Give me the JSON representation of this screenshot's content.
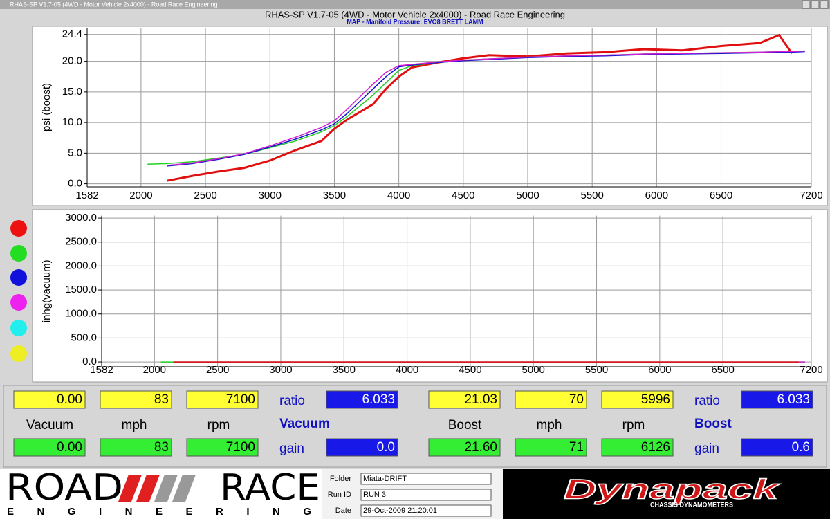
{
  "window": {
    "title": "RHAS-SP V1.7-05  (4WD - Motor Vehicle 2x4000) - Road Race Engineering",
    "heading": "RHAS-SP V1.7-05  (4WD - Motor Vehicle 2x4000) - Road Race Engineering"
  },
  "chart_data": [
    {
      "type": "line",
      "title": "MAP - Manifold Pressure: EVO8 BRETT LAMM",
      "ylabel": "psi (boost)",
      "x": [
        2050,
        2200,
        2400,
        2600,
        2800,
        3000,
        3200,
        3400,
        3500,
        3600,
        3800,
        3900,
        4000,
        4100,
        4300,
        4500,
        4700,
        5000,
        5300,
        5600,
        5900,
        6200,
        6500,
        6800,
        6950,
        7050,
        7150
      ],
      "series": [
        {
          "name": "red",
          "color": "#e01010",
          "values": [
            null,
            0.5,
            1.3,
            2.0,
            2.6,
            3.8,
            5.5,
            7.0,
            9.0,
            10.5,
            13.0,
            15.5,
            17.5,
            19.0,
            19.8,
            20.5,
            21.0,
            20.8,
            21.3,
            21.5,
            22.0,
            21.8,
            22.5,
            23.0,
            24.3,
            21.3,
            null
          ]
        },
        {
          "name": "green",
          "color": "#20d020",
          "values": [
            3.2,
            3.3,
            3.6,
            4.2,
            4.8,
            5.9,
            7.0,
            8.5,
            9.5,
            11.0,
            14.5,
            16.5,
            18.5,
            19.3,
            19.8,
            20.2,
            20.4,
            20.7,
            20.9,
            21.0,
            21.2,
            21.3,
            21.4,
            21.5,
            21.6,
            21.6,
            21.7
          ]
        },
        {
          "name": "blue",
          "color": "#1010d0",
          "values": [
            null,
            2.9,
            3.3,
            4.0,
            4.8,
            6.0,
            7.3,
            8.8,
            9.8,
            11.5,
            15.5,
            17.5,
            19.1,
            19.4,
            19.8,
            20.1,
            20.3,
            20.6,
            20.8,
            20.9,
            21.1,
            21.2,
            21.3,
            21.4,
            21.5,
            21.5,
            21.6
          ]
        },
        {
          "name": "magenta",
          "color": "#d020d0",
          "values": [
            null,
            3.0,
            3.4,
            4.1,
            4.9,
            6.2,
            7.6,
            9.2,
            10.3,
            12.2,
            16.3,
            18.2,
            19.3,
            19.5,
            19.9,
            20.2,
            20.4,
            20.7,
            20.9,
            21.0,
            21.2,
            21.3,
            21.4,
            21.5,
            21.6,
            21.6,
            21.7
          ]
        }
      ],
      "xlim": [
        1582,
        7200
      ],
      "xticks": [
        1582,
        2000,
        2500,
        3000,
        3500,
        4000,
        4500,
        5000,
        5500,
        6000,
        6500,
        7200
      ],
      "ylim": [
        -0.5,
        25.5
      ],
      "yticks": [
        {
          "value": 0,
          "label": "0.0"
        },
        {
          "value": 5,
          "label": "5.0"
        },
        {
          "value": 10,
          "label": "10.0"
        },
        {
          "value": 15,
          "label": "15.0"
        },
        {
          "value": 20,
          "label": "20.0"
        },
        24.4
      ],
      "grid": true
    },
    {
      "type": "line",
      "ylabel": "inhg(vacuum)",
      "x": [
        2050,
        2150,
        7100,
        7150
      ],
      "series": [
        {
          "name": "green",
          "color": "#20d020",
          "values": [
            0,
            0,
            0,
            0
          ]
        },
        {
          "name": "magenta",
          "color": "#d020d0",
          "values": [
            null,
            0,
            0,
            0
          ]
        },
        {
          "name": "red",
          "color": "#e01010",
          "values": [
            null,
            0,
            0,
            null
          ]
        }
      ],
      "xlim": [
        1582,
        7200
      ],
      "xticks": [
        1582,
        2000,
        2500,
        3000,
        3500,
        4000,
        4500,
        5000,
        5500,
        6000,
        6500,
        7200
      ],
      "ylim": [
        -100,
        3050
      ],
      "yticks": [
        {
          "value": 0,
          "label": "0.0"
        },
        {
          "value": 500,
          "label": "500.0"
        },
        {
          "value": 1000,
          "label": "1000.0"
        },
        {
          "value": 1500,
          "label": "1500.0"
        },
        {
          "value": 2000,
          "label": "2000.0"
        },
        {
          "value": 2500,
          "label": "2500.0"
        },
        {
          "value": 3000,
          "label": "3000.0"
        }
      ],
      "grid": true
    }
  ],
  "panels": [
    {
      "top": [
        "0.00",
        "83",
        "7100"
      ],
      "ratio_label": "ratio",
      "ratio": "6.033",
      "labels": [
        "Vacuum",
        "mph",
        "rpm"
      ],
      "title": "Vacuum",
      "bottom": [
        "0.00",
        "83",
        "7100"
      ],
      "gain_label": "gain",
      "gain": "0.0"
    },
    {
      "top": [
        "21.03",
        "70",
        "5996"
      ],
      "ratio_label": "ratio",
      "ratio": "6.033",
      "labels": [
        "Boost",
        "mph",
        "rpm"
      ],
      "title": "Boost",
      "bottom": [
        "21.60",
        "71",
        "6126"
      ],
      "gain_label": "gain",
      "gain": "0.6"
    }
  ],
  "footer": {
    "logo_left": "ROAD",
    "logo_right": "RACE",
    "logo_sub": "ENGINEERING",
    "fields": [
      {
        "label": "Folder",
        "value": "Miata-DRIFT"
      },
      {
        "label": "Run ID",
        "value": "RUN 3"
      },
      {
        "label": "Date",
        "value": "29-Oct-2009  21:20:01"
      }
    ],
    "brand": "Dynapack",
    "brand_sub": "CHASSIS DYNAMOMETERS"
  }
}
